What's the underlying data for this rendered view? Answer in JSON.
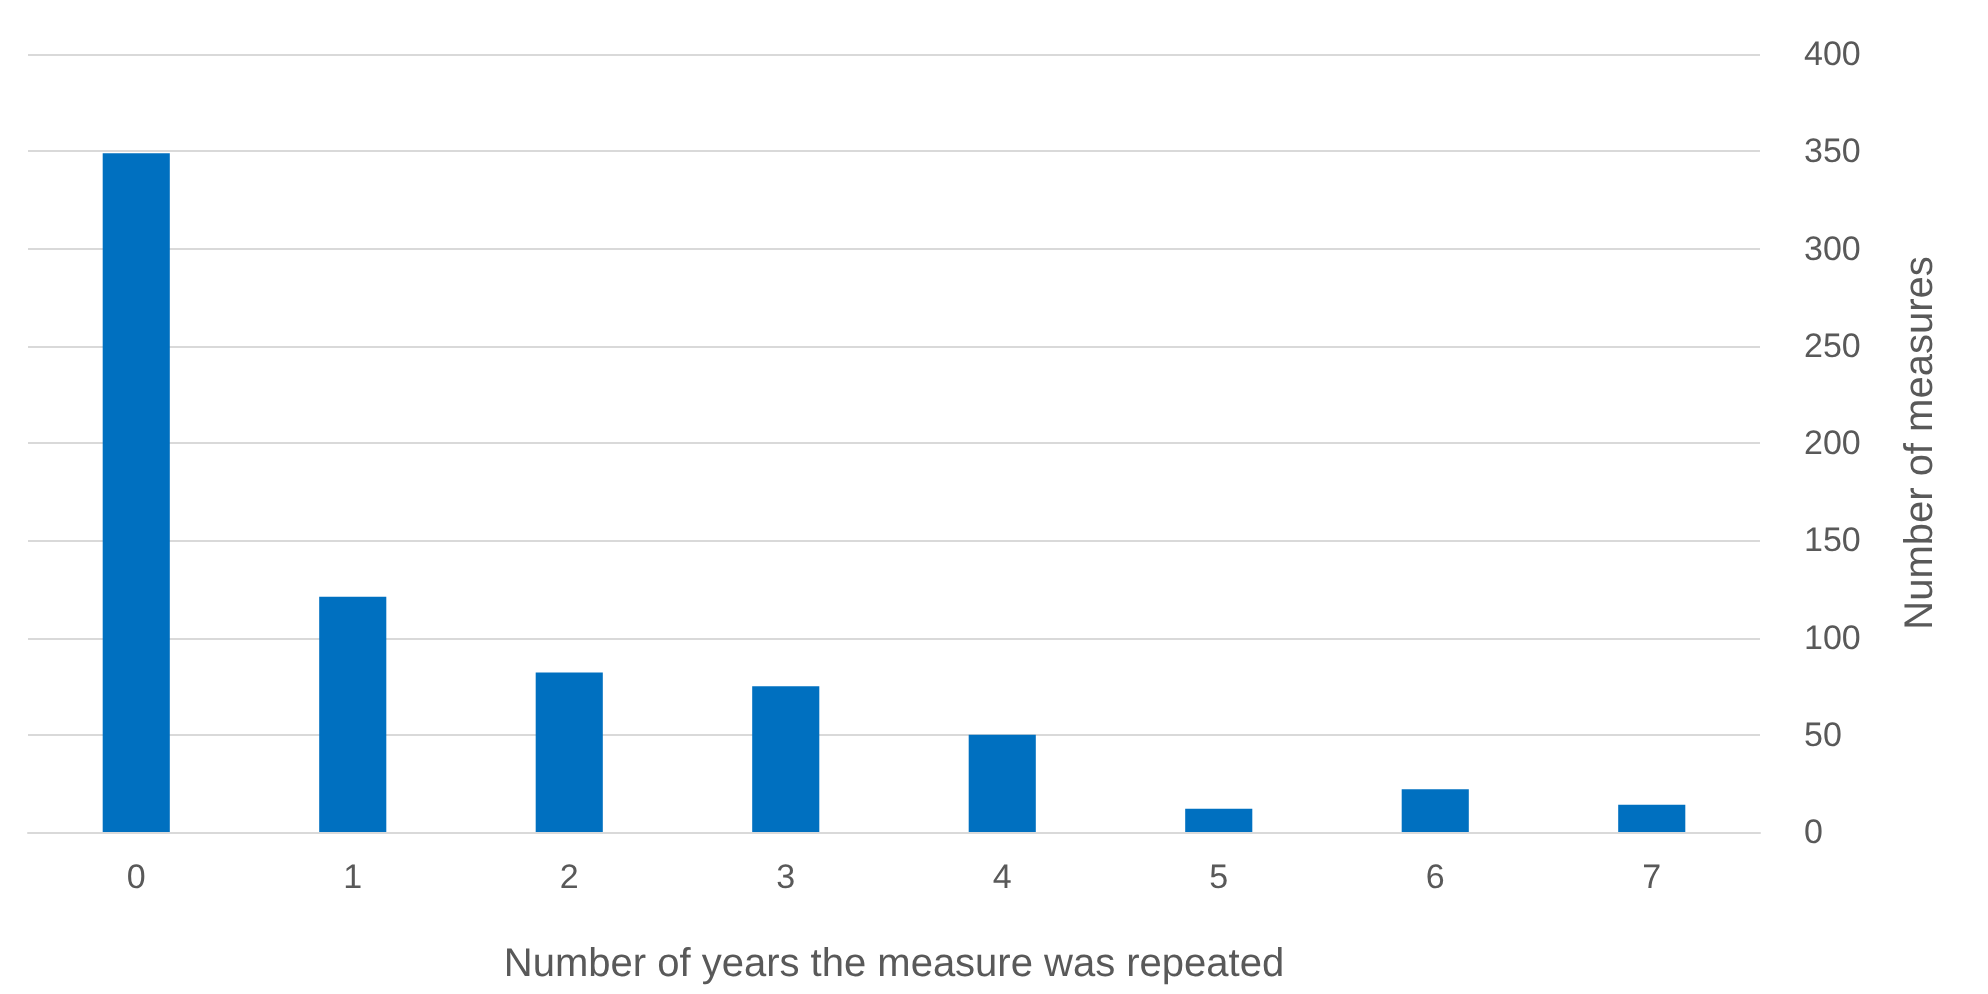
{
  "chart_data": {
    "type": "bar",
    "xlabel": "Number of years the measure was repeated",
    "ylabel": "Number of measures",
    "categories": [
      "0",
      "1",
      "2",
      "3",
      "4",
      "5",
      "6",
      "7"
    ],
    "values": [
      349,
      121,
      82,
      75,
      50,
      12,
      22,
      14
    ],
    "color": "#0070c0",
    "ylim": [
      0,
      400
    ],
    "yticks": [
      0,
      50,
      100,
      150,
      200,
      250,
      300,
      350,
      400
    ],
    "grid": "y"
  }
}
